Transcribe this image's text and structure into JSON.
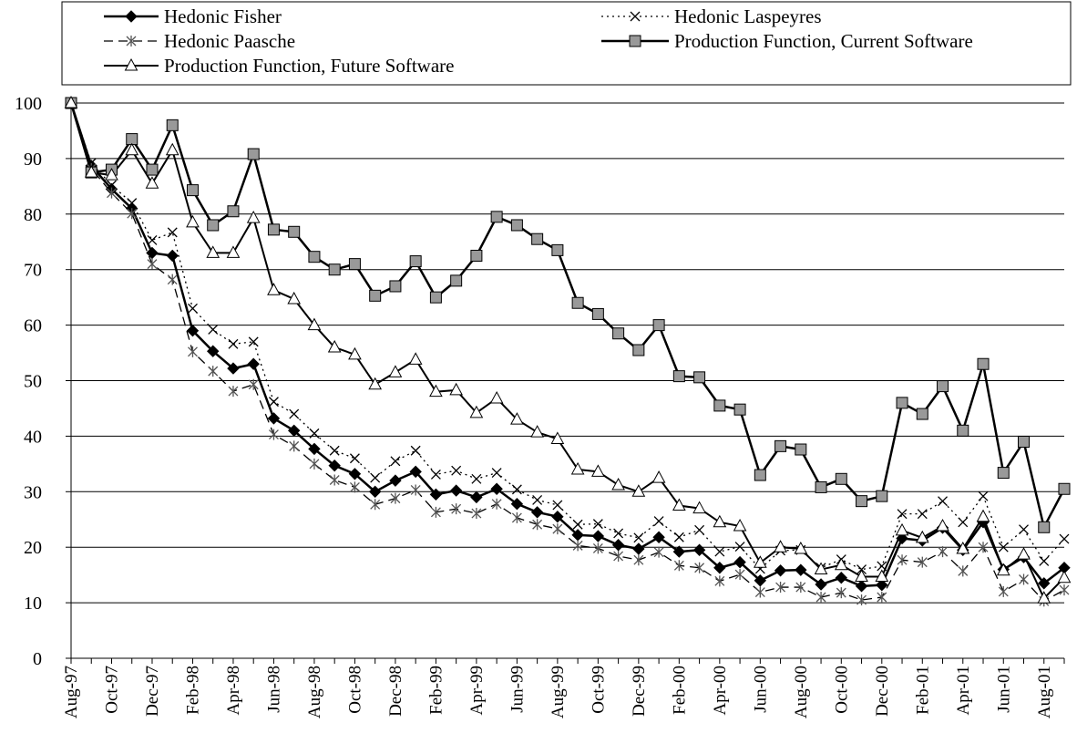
{
  "chart_data": {
    "type": "line",
    "categories": [
      "Aug-97",
      null,
      "Oct-97",
      null,
      "Dec-97",
      null,
      "Feb-98",
      null,
      "Apr-98",
      null,
      "Jun-98",
      null,
      "Aug-98",
      null,
      "Oct-98",
      null,
      "Dec-98",
      null,
      "Feb-99",
      null,
      "Apr-99",
      null,
      "Jun-99",
      null,
      "Aug-99",
      null,
      "Oct-99",
      null,
      "Dec-99",
      null,
      "Feb-00",
      null,
      "Apr-00",
      null,
      "Jun-00",
      null,
      "Aug-00",
      null,
      "Oct-00",
      null,
      "Dec-00",
      null,
      "Feb-01",
      null,
      "Apr-01",
      null,
      "Jun-01",
      null,
      "Aug-01",
      null
    ],
    "ylim": [
      0,
      100
    ],
    "yticks": [
      0,
      10,
      20,
      30,
      40,
      50,
      60,
      70,
      80,
      90,
      100
    ],
    "grid": true,
    "series": [
      {
        "name": "Hedonic Fisher",
        "color": "#000000",
        "marker": "diamond",
        "dash": "solid",
        "values": [
          100,
          88.7,
          84.5,
          81,
          73,
          72.5,
          59,
          55.3,
          52.2,
          53,
          43.2,
          41,
          37.7,
          34.7,
          33.2,
          30,
          32,
          33.6,
          29.5,
          30.2,
          29,
          30.5,
          27.8,
          26.3,
          25.5,
          22.2,
          22,
          20.4,
          19.7,
          21.8,
          19.2,
          19.5,
          16.3,
          17.3,
          14,
          15.8,
          15.9,
          13.3,
          14.5,
          13,
          13.2,
          21.6,
          21.2,
          23.5,
          19.5,
          24.5,
          16,
          18.2,
          13.5,
          16.3
        ]
      },
      {
        "name": "Hedonic Laspeyres",
        "color": "#000000",
        "marker": "x",
        "dash": "dotted",
        "values": [
          100,
          89.2,
          85.2,
          82,
          75.3,
          76.7,
          63,
          59.2,
          56.6,
          57,
          46.2,
          44,
          40.5,
          37.4,
          36,
          32.5,
          35.5,
          37.4,
          33.1,
          33.8,
          32.3,
          33.4,
          30.4,
          28.5,
          27.6,
          24.1,
          24.2,
          22.5,
          21.7,
          24.7,
          21.8,
          23.1,
          19.2,
          20.1,
          16.1,
          19.4,
          19.5,
          16.3,
          17.8,
          16,
          16.6,
          26,
          26,
          28.3,
          24.5,
          29.2,
          20,
          23.2,
          17.5,
          21.5
        ]
      },
      {
        "name": "Hedonic Paasche",
        "color": "#000000",
        "marker": "star",
        "dash": "dashed",
        "values": [
          100,
          88.2,
          83.8,
          80.1,
          71,
          68.2,
          55.2,
          51.7,
          48.1,
          49.3,
          40.3,
          38.2,
          35,
          32.1,
          30.8,
          27.7,
          28.8,
          30.3,
          26.3,
          26.9,
          26.1,
          27.8,
          25.3,
          24.1,
          23.3,
          20.3,
          19.8,
          18.4,
          17.7,
          19.1,
          16.7,
          16.3,
          13.9,
          15.1,
          11.9,
          12.8,
          12.8,
          11,
          11.8,
          10.5,
          11,
          17.7,
          17.3,
          19.2,
          15.7,
          20,
          12,
          14.2,
          10.3,
          12.3
        ]
      },
      {
        "name": "Production Function, Current Software",
        "color": "#000000",
        "marker": "square",
        "dash": "solid",
        "values": [
          100,
          87.5,
          88,
          93.5,
          88,
          96,
          84.3,
          78,
          80.5,
          90.8,
          77.2,
          76.8,
          72.3,
          70,
          71,
          65.3,
          67,
          71.5,
          65,
          68,
          72.5,
          79.5,
          78,
          75.5,
          73.5,
          64,
          62,
          58.5,
          55.5,
          60,
          50.8,
          50.6,
          45.5,
          44.8,
          33,
          38.2,
          37.6,
          30.8,
          32.3,
          28.3,
          29.2,
          46,
          44,
          49,
          41,
          53,
          33.4,
          39,
          23.6,
          30.5
        ]
      },
      {
        "name": "Production Function, Future Software",
        "color": "#000000",
        "marker": "triangle",
        "dash": "solid",
        "values": [
          100,
          87.5,
          87,
          91.5,
          85.5,
          91.5,
          78.5,
          73,
          73,
          79.3,
          66.3,
          64.7,
          60,
          56,
          54.7,
          49.3,
          51.5,
          53.8,
          48,
          48.3,
          44.2,
          46.8,
          43,
          40.7,
          39.5,
          34,
          33.6,
          31.2,
          30,
          32.5,
          27.5,
          27,
          24.5,
          23.8,
          17.2,
          20,
          19.7,
          16,
          16.8,
          14.7,
          14.7,
          23,
          21.7,
          23.8,
          19.7,
          25.5,
          15.8,
          18.7,
          10.8,
          14.5
        ]
      }
    ]
  }
}
